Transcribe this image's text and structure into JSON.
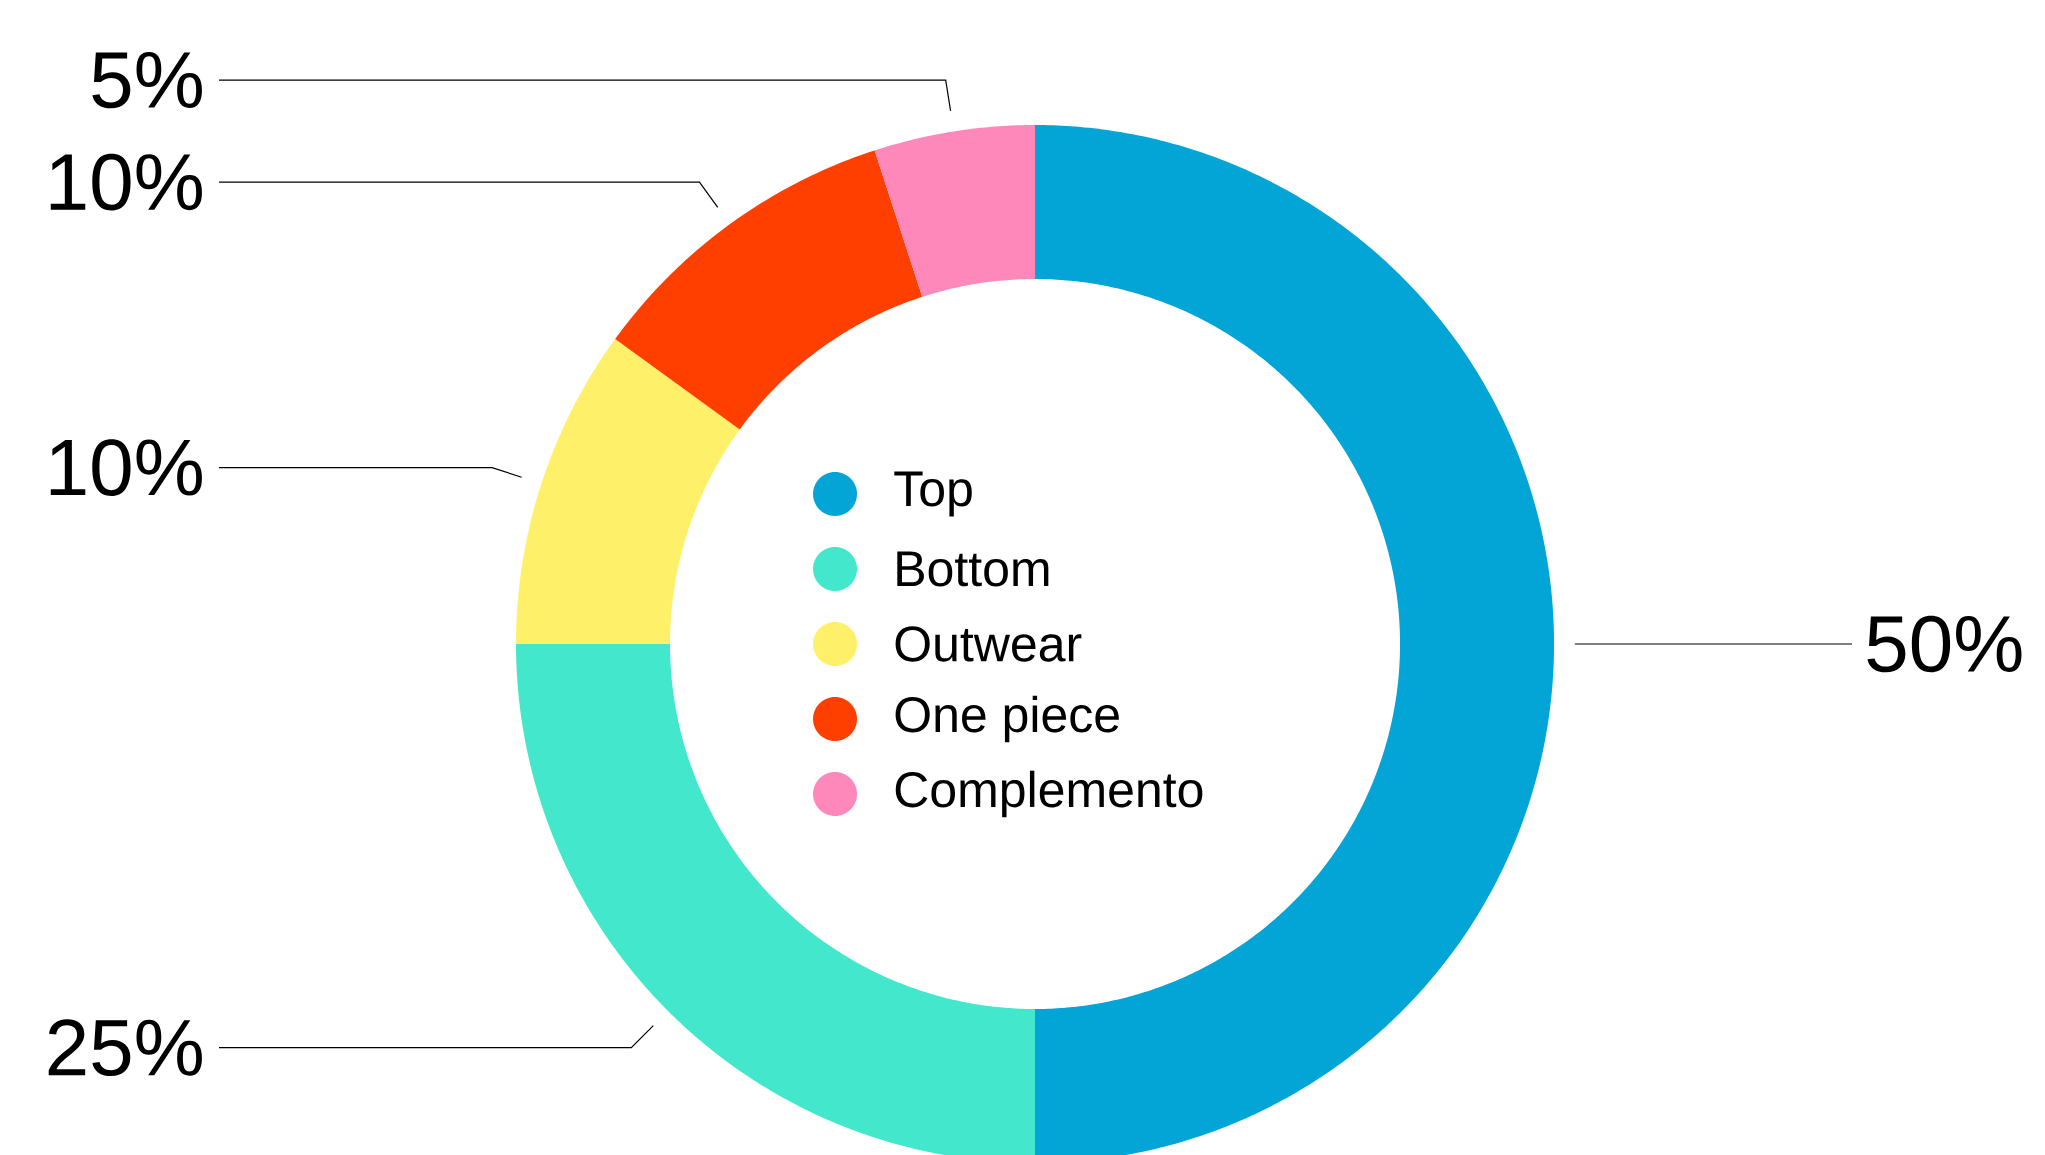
{
  "chart_data": {
    "type": "donut",
    "categories": [
      "Top",
      "Bottom",
      "Outwear",
      "One piece",
      "Complemento"
    ],
    "values": [
      50,
      25,
      10,
      10,
      5
    ],
    "colors": [
      "#03a4d6",
      "#43e8cc",
      "#fff06a",
      "#ff3f00",
      "#ff88bb"
    ],
    "value_labels": [
      "50%",
      "25%",
      "10%",
      "10%",
      "5%"
    ],
    "legend": "center"
  }
}
